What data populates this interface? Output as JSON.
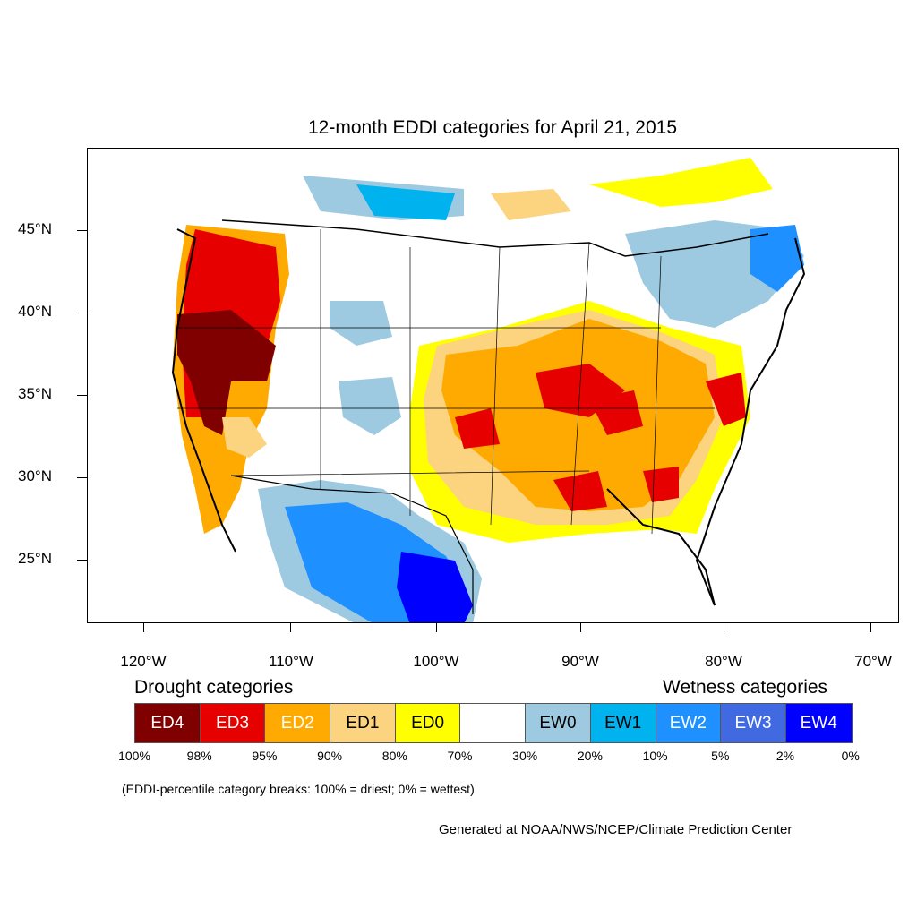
{
  "title": "12-month EDDI categories for April 21, 2015",
  "y_ticks": [
    "45°N",
    "40°N",
    "35°N",
    "30°N",
    "25°N"
  ],
  "x_ticks": [
    "120°W",
    "110°W",
    "100°W",
    "90°W",
    "80°W",
    "70°W"
  ],
  "legend": {
    "drought_title": "Drought categories",
    "wetness_title": "Wetness categories",
    "categories": [
      {
        "label": "ED4",
        "color": "#800000",
        "text_color": "#ffffff"
      },
      {
        "label": "ED3",
        "color": "#e60000",
        "text_color": "#ffffff"
      },
      {
        "label": "ED2",
        "color": "#ffaa00",
        "text_color": "#ffffff"
      },
      {
        "label": "ED1",
        "color": "#fcd37f",
        "text_color": "#000000"
      },
      {
        "label": "ED0",
        "color": "#ffff00",
        "text_color": "#000000"
      },
      {
        "label": "",
        "color": "#ffffff",
        "text_color": "#000000"
      },
      {
        "label": "EW0",
        "color": "#9ecae1",
        "text_color": "#000000"
      },
      {
        "label": "EW1",
        "color": "#00b2ee",
        "text_color": "#000000"
      },
      {
        "label": "EW2",
        "color": "#1e90ff",
        "text_color": "#ffffff"
      },
      {
        "label": "EW3",
        "color": "#4169e1",
        "text_color": "#ffffff"
      },
      {
        "label": "EW4",
        "color": "#0000ff",
        "text_color": "#ffffff"
      }
    ],
    "breaks": [
      "100%",
      "98%",
      "95%",
      "90%",
      "80%",
      "70%",
      "30%",
      "20%",
      "10%",
      "5%",
      "2%",
      "0%"
    ]
  },
  "note": "(EDDI-percentile category breaks: 100% = driest; 0% = wettest)",
  "credit": "Generated at NOAA/NWS/NCEP/Climate Prediction Center"
}
